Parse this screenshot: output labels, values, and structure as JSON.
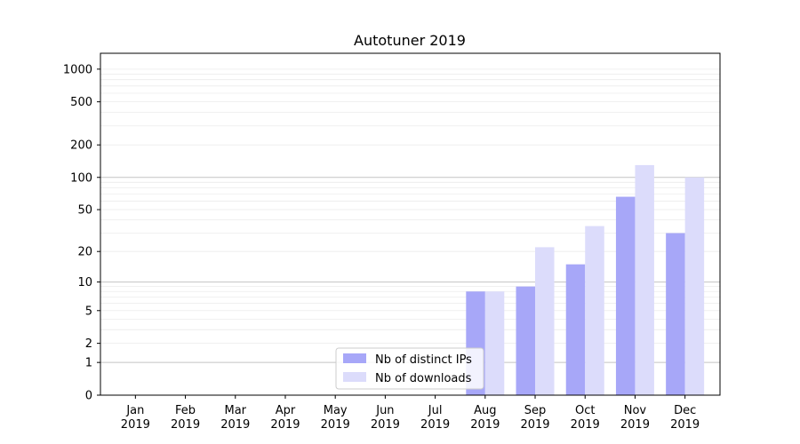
{
  "chart_data": {
    "type": "bar",
    "title": "Autotuner 2019",
    "xlabel": "",
    "ylabel": "",
    "yscale": "symlog",
    "ylim": [
      0,
      1400
    ],
    "grid": {
      "major": true,
      "minor": true,
      "axis": "y"
    },
    "legend_position": "lower-center",
    "categories": [
      [
        "Jan",
        "2019"
      ],
      [
        "Feb",
        "2019"
      ],
      [
        "Mar",
        "2019"
      ],
      [
        "Apr",
        "2019"
      ],
      [
        "May",
        "2019"
      ],
      [
        "Jun",
        "2019"
      ],
      [
        "Jul",
        "2019"
      ],
      [
        "Aug",
        "2019"
      ],
      [
        "Sep",
        "2019"
      ],
      [
        "Oct",
        "2019"
      ],
      [
        "Nov",
        "2019"
      ],
      [
        "Dec",
        "2019"
      ]
    ],
    "yticks": [
      0,
      1,
      2,
      5,
      10,
      20,
      50,
      100,
      200,
      500,
      1000
    ],
    "ytick_labels": [
      "0",
      "1",
      "2",
      "5",
      "10",
      "20",
      "50",
      "100",
      "200",
      "500",
      "1000"
    ],
    "series": [
      {
        "name": "Nb of distinct IPs",
        "color": "#a7a7f8",
        "values": [
          0,
          0,
          0,
          0,
          0,
          0,
          0,
          8,
          9,
          15,
          66,
          30
        ]
      },
      {
        "name": "Nb of downloads",
        "color": "#dcdcfb",
        "values": [
          0,
          0,
          0,
          0,
          0,
          0,
          0,
          8,
          22,
          35,
          130,
          100
        ]
      }
    ]
  }
}
